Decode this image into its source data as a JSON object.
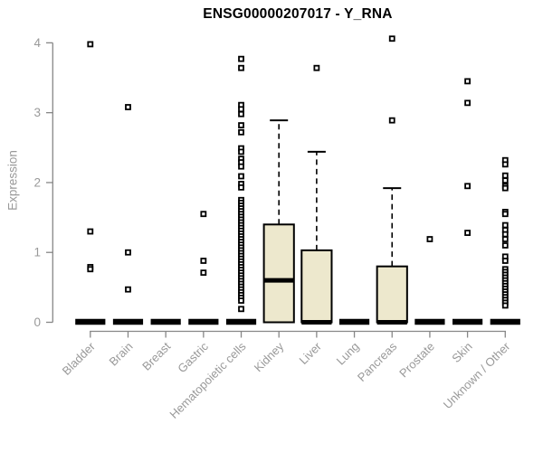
{
  "chart_data": {
    "type": "boxplot",
    "title": "ENSG00000207017 - Y_RNA",
    "ylabel": "Expression",
    "xlabel": "",
    "ylim": [
      0,
      4
    ],
    "yticks": [
      0,
      1,
      2,
      3,
      4
    ],
    "grid": "off",
    "legend": "none",
    "categories": [
      "Bladder",
      "Brain",
      "Breast",
      "Gastric",
      "Hematopoietic cells",
      "Kidney",
      "Liver",
      "Lung",
      "Pancreas",
      "Prostate",
      "Skin",
      "Unknown / Other"
    ],
    "series": [
      {
        "category": "Bladder",
        "q1": 0,
        "median": 0,
        "q3": 0,
        "whisker_low": 0,
        "whisker_high": 0,
        "outliers": [
          3.98,
          1.3,
          0.79,
          0.76
        ]
      },
      {
        "category": "Brain",
        "q1": 0,
        "median": 0,
        "q3": 0,
        "whisker_low": 0,
        "whisker_high": 0,
        "outliers": [
          3.08,
          1.0,
          0.47
        ]
      },
      {
        "category": "Breast",
        "q1": 0,
        "median": 0,
        "q3": 0,
        "whisker_low": 0,
        "whisker_high": 0,
        "outliers": []
      },
      {
        "category": "Gastric",
        "q1": 0,
        "median": 0,
        "q3": 0,
        "whisker_low": 0,
        "whisker_high": 0,
        "outliers": [
          1.55,
          0.88,
          0.71
        ]
      },
      {
        "category": "Hematopoietic cells",
        "q1": 0,
        "median": 0,
        "q3": 0,
        "whisker_low": 0,
        "whisker_high": 0,
        "outliers": [
          3.77,
          3.64,
          3.11,
          3.05,
          2.98,
          2.82,
          2.72,
          2.49,
          2.44,
          2.34,
          2.29,
          2.23,
          2.09,
          1.98,
          1.93,
          1.75,
          1.71,
          1.67,
          1.63,
          1.59,
          1.55,
          1.51,
          1.47,
          1.43,
          1.39,
          1.35,
          1.31,
          1.27,
          1.23,
          1.19,
          1.15,
          1.11,
          1.07,
          1.03,
          0.99,
          0.95,
          0.91,
          0.87,
          0.83,
          0.79,
          0.75,
          0.71,
          0.67,
          0.63,
          0.59,
          0.55,
          0.51,
          0.47,
          0.43,
          0.39,
          0.35,
          0.31,
          0.19
        ]
      },
      {
        "category": "Kidney",
        "q1": 0,
        "median": 0.6,
        "q3": 1.4,
        "whisker_low": 0,
        "whisker_high": 2.89,
        "outliers": []
      },
      {
        "category": "Liver",
        "q1": 0,
        "median": 0,
        "q3": 1.03,
        "whisker_low": 0,
        "whisker_high": 2.44,
        "outliers": [
          3.64
        ]
      },
      {
        "category": "Lung",
        "q1": 0,
        "median": 0,
        "q3": 0,
        "whisker_low": 0,
        "whisker_high": 0,
        "outliers": []
      },
      {
        "category": "Pancreas",
        "q1": 0,
        "median": 0,
        "q3": 0.8,
        "whisker_low": 0,
        "whisker_high": 1.92,
        "outliers": [
          4.06,
          2.89
        ]
      },
      {
        "category": "Prostate",
        "q1": 0,
        "median": 0,
        "q3": 0,
        "whisker_low": 0,
        "whisker_high": 0,
        "outliers": [
          1.19
        ]
      },
      {
        "category": "Skin",
        "q1": 0,
        "median": 0,
        "q3": 0,
        "whisker_low": 0,
        "whisker_high": 0,
        "outliers": [
          3.45,
          3.14,
          1.95,
          1.28
        ]
      },
      {
        "category": "Unknown / Other",
        "q1": 0,
        "median": 0,
        "q3": 0,
        "whisker_low": 0,
        "whisker_high": 0,
        "outliers": [
          2.32,
          2.26,
          2.1,
          2.03,
          1.95,
          1.92,
          1.58,
          1.55,
          1.39,
          1.32,
          1.26,
          1.19,
          1.1,
          0.94,
          0.88,
          0.76,
          0.72,
          0.68,
          0.64,
          0.6,
          0.56,
          0.52,
          0.48,
          0.44,
          0.4,
          0.36,
          0.32,
          0.28,
          0.24
        ]
      }
    ],
    "colors": {
      "box_fill": "#EDE8CD",
      "box_stroke": "#000000",
      "median": "#000000",
      "whisker": "#000000",
      "outlier": "#000000",
      "axis_line": "#878787",
      "tick_label": "#999999",
      "title": "#000000",
      "background": "#FFFFFF"
    }
  }
}
